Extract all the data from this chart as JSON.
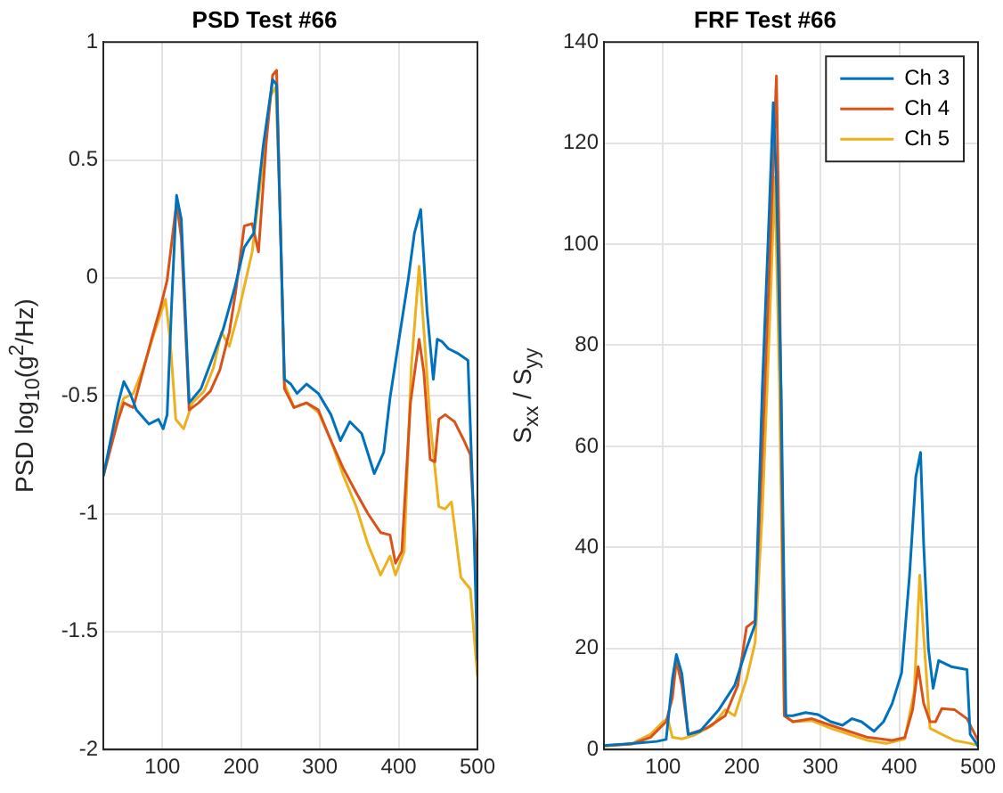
{
  "chart_data": [
    {
      "type": "line",
      "title": "PSD Test #66",
      "ylabel": "PSD log$_{10}$(g$^{2}$/Hz)",
      "xlim": [
        25,
        500
      ],
      "xticks": [
        100,
        200,
        300,
        400,
        500
      ],
      "ylim": [
        -2,
        1
      ],
      "yticks": [
        -2,
        -1.5,
        -1,
        -0.5,
        0,
        0.5,
        1
      ],
      "grid": true,
      "legend": false,
      "series": [
        {
          "color": "#0072bd",
          "x": [
            25,
            44,
            51,
            59,
            67,
            83,
            95,
            101,
            106,
            112,
            118,
            124,
            134,
            149,
            177,
            192,
            204,
            216,
            228,
            240,
            245,
            255,
            263,
            271,
            283,
            298,
            314,
            326,
            338,
            353,
            369,
            381,
            389,
            400,
            412,
            420,
            428,
            436,
            444,
            449,
            455,
            463,
            475,
            488,
            495,
            500
          ],
          "values": [
            -0.84,
            -0.53,
            -0.44,
            -0.49,
            -0.56,
            -0.62,
            -0.6,
            -0.64,
            -0.58,
            -0.09,
            0.35,
            0.25,
            -0.53,
            -0.47,
            -0.22,
            -0.04,
            0.13,
            0.19,
            0.56,
            0.84,
            0.82,
            -0.43,
            -0.45,
            -0.49,
            -0.45,
            -0.49,
            -0.58,
            -0.69,
            -0.61,
            -0.66,
            -0.83,
            -0.74,
            -0.51,
            -0.27,
            -0.01,
            0.19,
            0.29,
            -0.14,
            -0.43,
            -0.26,
            -0.27,
            -0.3,
            -0.32,
            -0.35,
            -1.0,
            -1.62
          ]
        },
        {
          "color": "#d95319",
          "x": [
            25,
            44,
            51,
            63,
            75,
            87,
            98,
            106,
            118,
            124,
            134,
            146,
            161,
            173,
            185,
            193,
            204,
            214,
            222,
            232,
            240,
            245,
            255,
            267,
            283,
            298,
            314,
            330,
            346,
            361,
            377,
            389,
            396,
            404,
            415,
            426,
            432,
            440,
            446,
            451,
            459,
            471,
            483,
            491,
            500
          ],
          "values": [
            -0.84,
            -0.6,
            -0.53,
            -0.55,
            -0.4,
            -0.25,
            -0.12,
            -0.01,
            0.32,
            0.17,
            -0.56,
            -0.53,
            -0.48,
            -0.39,
            -0.23,
            -0.06,
            0.22,
            0.23,
            0.11,
            0.58,
            0.86,
            0.88,
            -0.47,
            -0.55,
            -0.53,
            -0.56,
            -0.69,
            -0.81,
            -0.91,
            -1.0,
            -1.08,
            -1.09,
            -1.21,
            -1.16,
            -0.53,
            -0.26,
            -0.4,
            -0.77,
            -0.78,
            -0.6,
            -0.58,
            -0.61,
            -0.69,
            -0.75,
            -1.3
          ]
        },
        {
          "color": "#edb120",
          "x": [
            25,
            44,
            51,
            63,
            75,
            91,
            104,
            110,
            117,
            127,
            138,
            153,
            165,
            175,
            185,
            197,
            214,
            228,
            237,
            244,
            250,
            255,
            267,
            283,
            298,
            314,
            330,
            346,
            361,
            377,
            389,
            396,
            407,
            416,
            426,
            432,
            440,
            451,
            459,
            467,
            479,
            491,
            500
          ],
          "values": [
            -0.84,
            -0.58,
            -0.51,
            -0.49,
            -0.39,
            -0.22,
            -0.09,
            -0.27,
            -0.6,
            -0.64,
            -0.53,
            -0.48,
            -0.38,
            -0.23,
            -0.29,
            -0.14,
            0.11,
            0.5,
            0.77,
            0.81,
            0.22,
            -0.45,
            -0.55,
            -0.53,
            -0.57,
            -0.69,
            -0.84,
            -0.97,
            -1.13,
            -1.26,
            -1.18,
            -1.26,
            -1.16,
            -0.38,
            0.05,
            -0.22,
            -0.61,
            -0.97,
            -0.98,
            -0.95,
            -1.27,
            -1.32,
            -1.69
          ]
        }
      ]
    },
    {
      "type": "line",
      "title": "FRF Test #66",
      "ylabel": "S$_{xx}$  /  S$_{yy}$",
      "xlim": [
        25,
        500
      ],
      "xticks": [
        100,
        200,
        300,
        400,
        500
      ],
      "ylim": [
        0,
        140
      ],
      "yticks": [
        0,
        20,
        40,
        60,
        80,
        100,
        120,
        140
      ],
      "grid": true,
      "legend": "top right",
      "series": [
        {
          "name": "Ch 3",
          "color": "#0072bd",
          "x": [
            25,
            61,
            92,
            104,
            112,
            117,
            124,
            132,
            147,
            171,
            191,
            206,
            217,
            226,
            235,
            240,
            244,
            250,
            256,
            265,
            281,
            297,
            313,
            328,
            340,
            352,
            368,
            380,
            391,
            403,
            413,
            421,
            427,
            431,
            437,
            443,
            450,
            466,
            486,
            490,
            498,
            500
          ],
          "values": [
            0.8,
            1.2,
            1.6,
            2,
            14,
            18.8,
            15,
            3,
            3.6,
            7.9,
            12.7,
            20,
            24.8,
            71,
            107,
            128,
            112,
            71,
            6.7,
            6.7,
            7.3,
            6.9,
            5.5,
            4.8,
            6.1,
            5.5,
            3.6,
            5.5,
            9.1,
            15.2,
            34.5,
            54,
            58.8,
            40.6,
            20,
            12.1,
            17.6,
            16.4,
            15.8,
            3,
            1.2,
            0.6
          ]
        },
        {
          "name": "Ch 4",
          "color": "#d95319",
          "x": [
            25,
            61,
            84,
            104,
            112,
            117,
            124,
            132,
            155,
            179,
            195,
            206,
            217,
            226,
            235,
            244,
            248,
            254,
            265,
            289,
            313,
            336,
            360,
            376,
            391,
            407,
            417,
            424,
            431,
            439,
            446,
            454,
            470,
            486,
            498,
            500
          ],
          "values": [
            0.8,
            1.1,
            2.4,
            5.5,
            10.3,
            17.6,
            12.7,
            3,
            4.2,
            6.7,
            12.7,
            24.2,
            25.5,
            58.8,
            95,
            133.3,
            95,
            6.7,
            5.5,
            6.1,
            4.8,
            3.6,
            2.4,
            2.1,
            1.8,
            2.4,
            7.9,
            16.4,
            9.1,
            5.5,
            5.5,
            8.1,
            7.9,
            6.1,
            2.4,
            1.8
          ]
        },
        {
          "name": "Ch 5",
          "color": "#edb120",
          "x": [
            25,
            61,
            84,
            100,
            106,
            112,
            124,
            139,
            163,
            179,
            191,
            206,
            217,
            226,
            235,
            242,
            248,
            254,
            265,
            289,
            313,
            336,
            360,
            384,
            407,
            419,
            426,
            431,
            439,
            454,
            470,
            490,
            500
          ],
          "values": [
            0.6,
            1.2,
            3,
            5.5,
            6.1,
            2.4,
            2.1,
            2.8,
            4.8,
            7.9,
            6.7,
            13.9,
            21.2,
            46.7,
            83,
            113.3,
            71,
            6.7,
            5.5,
            5.7,
            4.2,
            3,
            1.8,
            1.2,
            2.1,
            11.5,
            34.5,
            22.4,
            4.2,
            3,
            1.8,
            1.2,
            0.8
          ]
        }
      ]
    }
  ]
}
